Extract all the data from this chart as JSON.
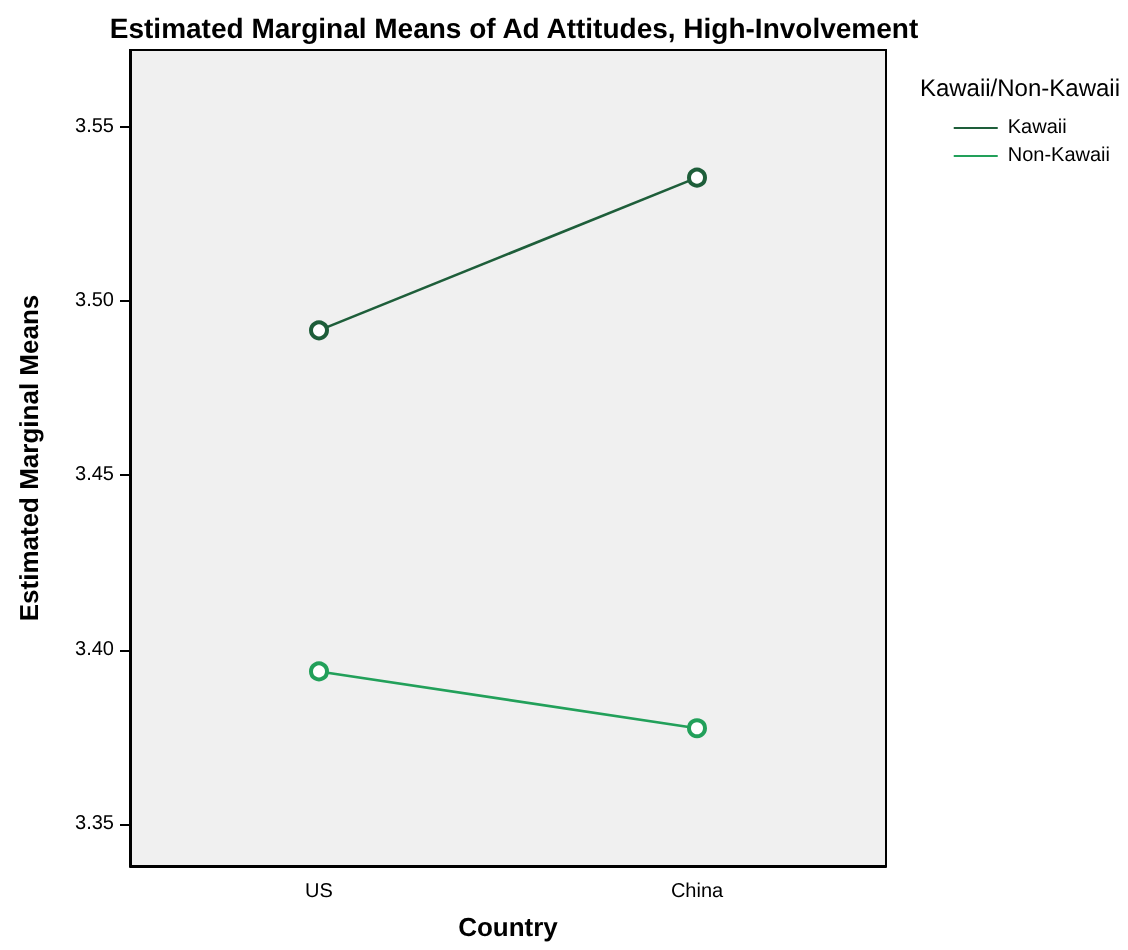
{
  "chart_data": {
    "type": "line",
    "title": "Estimated Marginal Means of Ad Attitudes, High-Involvement",
    "xlabel": "Country",
    "ylabel": "Estimated Marginal Means",
    "legend_title": "Kawaii/Non-Kawaii",
    "categories": [
      "US",
      "China"
    ],
    "series": [
      {
        "name": "Kawaii",
        "color": "#1e5e3a",
        "values": [
          3.4916,
          3.5354
        ]
      },
      {
        "name": "Non-Kawaii",
        "color": "#22a05a",
        "values": [
          3.3938,
          3.3775
        ]
      }
    ],
    "ylim": [
      3.338,
      3.572
    ],
    "yticks": [
      3.35,
      {
        "value": 3.4,
        "label": "3.40"
      },
      3.45,
      {
        "value": 3.5,
        "label": "3.50"
      },
      3.55
    ],
    "grid": false,
    "legend": "top right",
    "marker": "circle",
    "line_style": "solid"
  }
}
